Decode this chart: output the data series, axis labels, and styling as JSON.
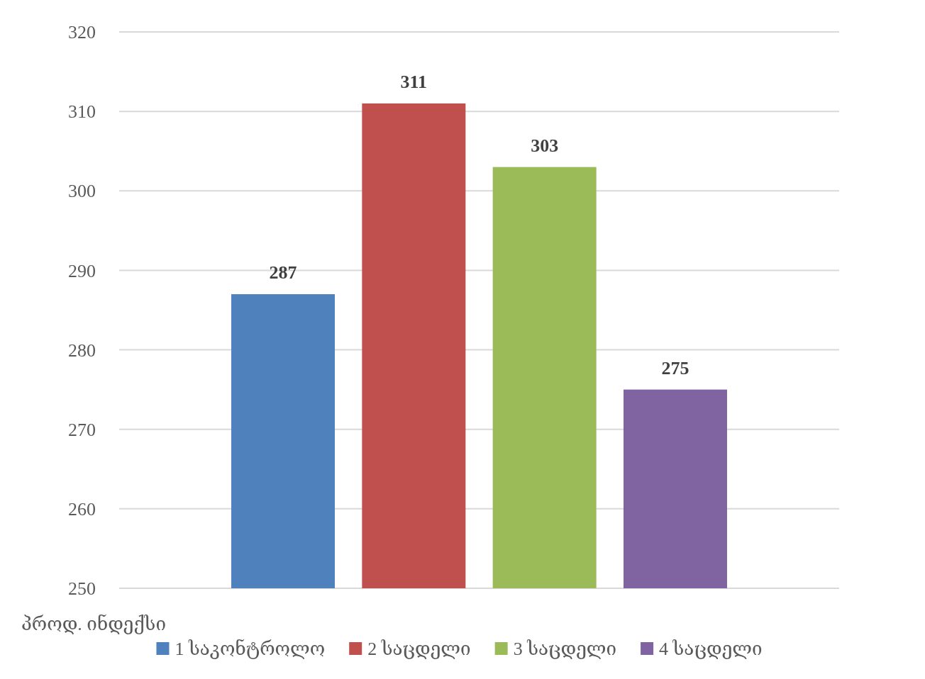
{
  "chart_data": {
    "type": "bar",
    "categories": [
      null
    ],
    "xlabel": "პროდ. ინდექსი",
    "series": [
      {
        "name": "1 საკონტროლო",
        "color": "#4f81bd",
        "values": [
          287
        ]
      },
      {
        "name": "2 საცდელი",
        "color": "#c0504d",
        "values": [
          311
        ]
      },
      {
        "name": "3 საცდელი",
        "color": "#9bbb59",
        "values": [
          303
        ]
      },
      {
        "name": "4 საცდელი",
        "color": "#8064a2",
        "values": [
          275
        ]
      }
    ],
    "ylim": [
      250,
      320
    ],
    "yticks": [
      250,
      260,
      270,
      280,
      290,
      300,
      310,
      320
    ],
    "grid": "y",
    "legend": "bottom",
    "data_labels": true
  }
}
